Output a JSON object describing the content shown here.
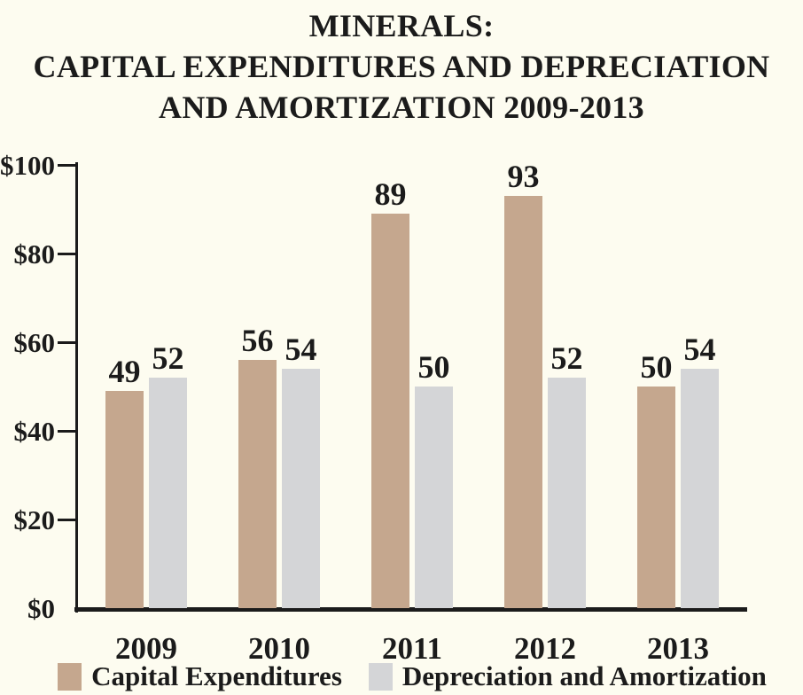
{
  "colors": {
    "background": "#FDFCF0",
    "text": "#1B1B1B",
    "axis": "#1B1B1B"
  },
  "chart_data": {
    "type": "bar",
    "title": "MINERALS: CAPITAL EXPENDITURES AND DEPRECIATION AND AMORTIZATION 2009-2013",
    "title_lines": [
      "MINERALS:",
      "CAPITAL EXPENDITURES AND DEPRECIATION",
      "AND AMORTIZATION 2009-2013"
    ],
    "categories": [
      "2009",
      "2010",
      "2011",
      "2012",
      "2013"
    ],
    "series": [
      {
        "name": "Capital Expenditures",
        "color": "#C5A78E",
        "values": [
          49,
          56,
          89,
          93,
          50
        ]
      },
      {
        "name": "Depreciation and Amortization",
        "color": "#D4D5D7",
        "values": [
          52,
          54,
          50,
          52,
          54
        ]
      }
    ],
    "y_ticks": [
      "$100",
      "$80",
      "$60",
      "$40",
      "$20",
      "$0"
    ],
    "y_tick_values": [
      100,
      80,
      60,
      40,
      20,
      0
    ],
    "ylim": [
      0,
      100
    ],
    "grid": false,
    "legend_position": "bottom",
    "value_labels": true
  }
}
